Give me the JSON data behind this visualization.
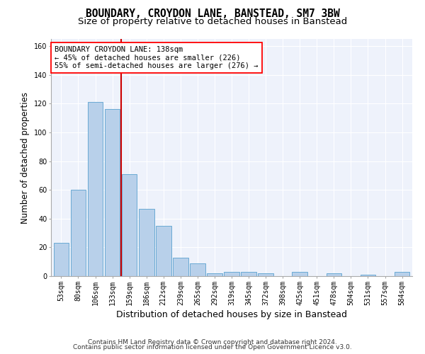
{
  "title1": "BOUNDARY, CROYDON LANE, BANSTEAD, SM7 3BW",
  "title2": "Size of property relative to detached houses in Banstead",
  "xlabel": "Distribution of detached houses by size in Banstead",
  "ylabel": "Number of detached properties",
  "footnote1": "Contains HM Land Registry data © Crown copyright and database right 2024.",
  "footnote2": "Contains public sector information licensed under the Open Government Licence v3.0.",
  "categories": [
    "53sqm",
    "80sqm",
    "106sqm",
    "133sqm",
    "159sqm",
    "186sqm",
    "212sqm",
    "239sqm",
    "265sqm",
    "292sqm",
    "319sqm",
    "345sqm",
    "372sqm",
    "398sqm",
    "425sqm",
    "451sqm",
    "478sqm",
    "504sqm",
    "531sqm",
    "557sqm",
    "584sqm"
  ],
  "values": [
    23,
    60,
    121,
    116,
    71,
    47,
    35,
    13,
    9,
    2,
    3,
    3,
    2,
    0,
    3,
    0,
    2,
    0,
    1,
    0,
    3
  ],
  "bar_color": "#b8d0ea",
  "bar_edge_color": "#6aaad4",
  "vline_index": 3,
  "vline_color": "#cc0000",
  "annotation_line1": "BOUNDARY CROYDON LANE: 138sqm",
  "annotation_line2": "← 45% of detached houses are smaller (226)",
  "annotation_line3": "55% of semi-detached houses are larger (276) →",
  "ylim": [
    0,
    165
  ],
  "yticks": [
    0,
    20,
    40,
    60,
    80,
    100,
    120,
    140,
    160
  ],
  "background_color": "#eef2fb",
  "grid_color": "#ffffff",
  "title1_fontsize": 10.5,
  "title2_fontsize": 9.5,
  "xlabel_fontsize": 9,
  "ylabel_fontsize": 8.5,
  "tick_fontsize": 7,
  "annotation_fontsize": 7.5,
  "footnote_fontsize": 6.5
}
